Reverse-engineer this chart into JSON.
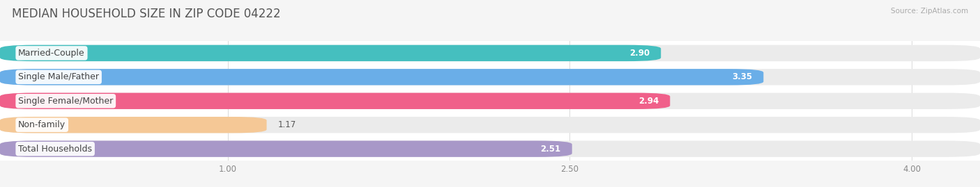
{
  "title": "MEDIAN HOUSEHOLD SIZE IN ZIP CODE 04222",
  "source": "Source: ZipAtlas.com",
  "categories": [
    "Married-Couple",
    "Single Male/Father",
    "Single Female/Mother",
    "Non-family",
    "Total Households"
  ],
  "values": [
    2.9,
    3.35,
    2.94,
    1.17,
    2.51
  ],
  "bar_colors": [
    "#45bfbf",
    "#6aaee8",
    "#f0608a",
    "#f5c896",
    "#a898c8"
  ],
  "background_color": "#f5f5f5",
  "bar_bg_color": "#ebebeb",
  "plot_bg_color": "#ffffff",
  "xlim_min": 0.0,
  "xlim_max": 4.3,
  "data_min": 1.0,
  "data_max": 4.0,
  "xticks": [
    1.0,
    2.5,
    4.0
  ],
  "title_fontsize": 12,
  "label_fontsize": 9,
  "value_fontsize": 8.5
}
